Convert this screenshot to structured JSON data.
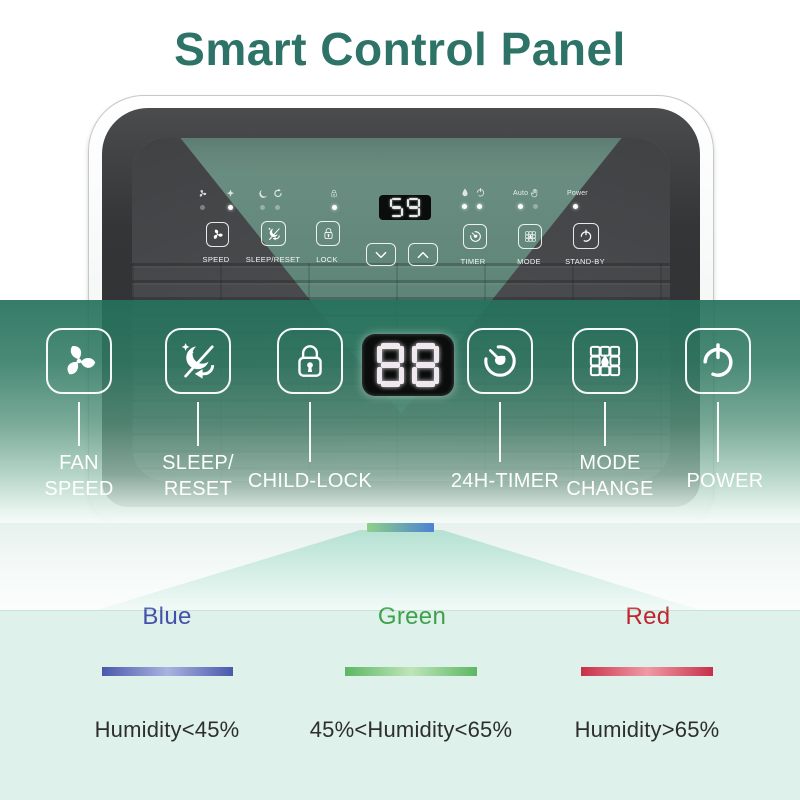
{
  "header": {
    "title": "Smart Control Panel"
  },
  "colors": {
    "title": "#2d7367",
    "overlay_teal": "#2f7c68",
    "legend_bg": "#def1eb"
  },
  "panel": {
    "display_value": "59",
    "auto_label": "Auto",
    "power_label": "Power",
    "status_icons": [
      "fan",
      "star",
      "sleep-moon",
      "reset-arrow",
      "lock",
      "water-drop",
      "power",
      "auto",
      "hand",
      "power-led"
    ],
    "buttons": [
      {
        "icon": "fan",
        "label": "SPEED"
      },
      {
        "icon": "sleep-reset",
        "label": "SLEEP/RESET"
      },
      {
        "icon": "lock",
        "label": "LOCK"
      },
      {
        "icon": "chevron-down",
        "label": ""
      },
      {
        "icon": "chevron-up",
        "label": ""
      },
      {
        "icon": "timer",
        "label": "TIMER"
      },
      {
        "icon": "mode",
        "label": "MODE"
      },
      {
        "icon": "power",
        "label": "STAND-BY"
      }
    ]
  },
  "callouts": {
    "display_value": "88",
    "items": [
      {
        "id": "fan-speed",
        "line1": "FAN",
        "line2": "SPEED"
      },
      {
        "id": "sleep-reset",
        "line1": "SLEEP/",
        "line2": "RESET"
      },
      {
        "id": "child-lock",
        "line1": "CHILD-LOCK",
        "line2": ""
      },
      {
        "id": "timer-24h",
        "line1": "24H-TIMER",
        "line2": ""
      },
      {
        "id": "mode-change",
        "line1": "MODE",
        "line2": "CHANGE"
      },
      {
        "id": "power",
        "line1": "POWER",
        "line2": ""
      }
    ]
  },
  "indicator": {
    "bar_colors": [
      "#8fd08a",
      "#4b82d2"
    ]
  },
  "legend": {
    "items": [
      {
        "name": "Blue",
        "name_color": "#4450a8",
        "bar_colors": [
          "#4a58ad",
          "#a9b3df"
        ],
        "range": "Humidity<45%"
      },
      {
        "name": "Green",
        "name_color": "#3fa04b",
        "bar_colors": [
          "#5cb763",
          "#bfe5ba"
        ],
        "range": "45%<Humidity<65%"
      },
      {
        "name": "Red",
        "name_color": "#c0242f",
        "bar_colors": [
          "#c73049",
          "#f09aa6"
        ],
        "range": "Humidity>65%"
      }
    ]
  }
}
